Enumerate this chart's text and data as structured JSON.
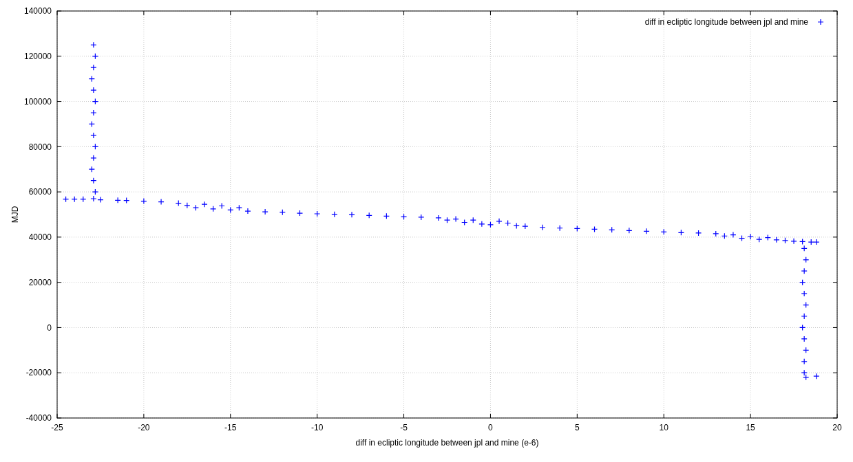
{
  "chart_data": {
    "type": "scatter",
    "xlabel": "diff in ecliptic longitude between jpl and mine (e-6)",
    "ylabel": "MJD",
    "xlim": [
      -25,
      20
    ],
    "xticks": [
      -25,
      -20,
      -15,
      -10,
      -5,
      0,
      5,
      10,
      15,
      20
    ],
    "ylim": [
      -40000,
      140000
    ],
    "yticks": [
      -40000,
      -20000,
      0,
      20000,
      40000,
      60000,
      80000,
      100000,
      120000,
      140000
    ],
    "grid": true,
    "legend": "top right",
    "marker": "cross",
    "series": [
      {
        "name": "diff in ecliptic longitude between jpl and mine",
        "color": "#0000ff",
        "x": [
          -22.9,
          -22.8,
          -22.9,
          -23.0,
          -22.9,
          -22.8,
          -22.9,
          -23.0,
          -22.9,
          -22.8,
          -22.9,
          -23.0,
          -22.9,
          -22.8,
          -22.9,
          -24.5,
          -24.0,
          -23.5,
          -22.5,
          -21.5,
          -21,
          -20,
          -19,
          -18,
          -17.5,
          -17,
          -16.5,
          -16,
          -15.5,
          -15,
          -14.5,
          -14,
          -13,
          -12,
          -11,
          -10,
          -9,
          -8,
          -7,
          -6,
          -5,
          -4,
          -3,
          -2.5,
          -2,
          -1.5,
          -1,
          -0.5,
          0,
          0.5,
          1,
          1.5,
          2,
          3,
          4,
          5,
          6,
          7,
          8,
          9,
          10,
          11,
          12,
          13,
          13.5,
          14,
          14.5,
          15,
          15.5,
          16,
          16.5,
          17,
          17.5,
          18,
          18.5,
          18.8,
          18.1,
          18.2,
          18.1,
          18.0,
          18.1,
          18.2,
          18.1,
          18.0,
          18.1,
          18.2,
          18.1,
          18.1,
          18.2,
          18.8
        ],
        "values": [
          57000,
          60000,
          65000,
          70000,
          75000,
          80000,
          85000,
          90000,
          95000,
          100000,
          105000,
          110000,
          115000,
          120000,
          125000,
          56800,
          56800,
          56800,
          56500,
          56300,
          56200,
          55900,
          55600,
          55000,
          54000,
          53000,
          54500,
          52500,
          53800,
          52000,
          53000,
          51500,
          51200,
          51000,
          50600,
          50300,
          50100,
          49900,
          49600,
          49300,
          49000,
          48800,
          48500,
          47500,
          48000,
          46500,
          47500,
          45800,
          45500,
          47000,
          46200,
          45000,
          44800,
          44300,
          44000,
          43800,
          43500,
          43200,
          42900,
          42600,
          42300,
          42000,
          41800,
          41500,
          40500,
          41000,
          39500,
          40200,
          39000,
          39800,
          38800,
          38500,
          38200,
          38000,
          37800,
          37800,
          35000,
          30000,
          25000,
          20000,
          15000,
          10000,
          5000,
          0,
          -5000,
          -10000,
          -15000,
          -20000,
          -22000,
          -21500
        ]
      }
    ]
  }
}
